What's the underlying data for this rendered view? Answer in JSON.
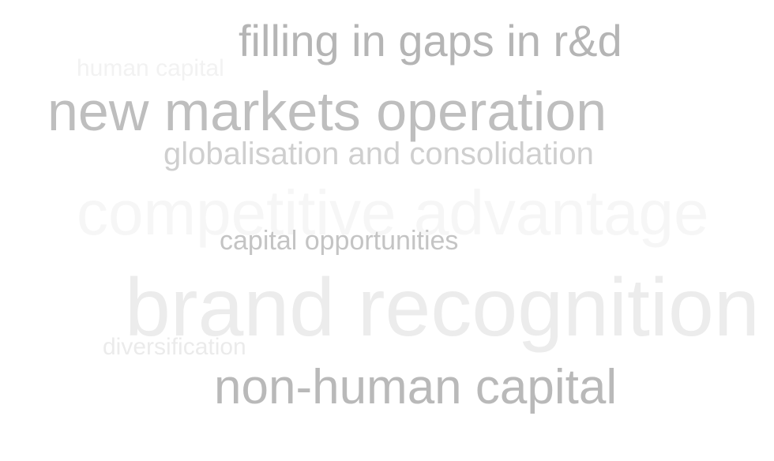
{
  "words": [
    {
      "id": "human-capital",
      "text": "human capital",
      "color": "#f2f2f2"
    },
    {
      "id": "filling-gaps",
      "text": "filling in gaps in r&d",
      "color": "#b5b5b5"
    },
    {
      "id": "new-markets",
      "text": "new markets operation",
      "color": "#bebebe"
    },
    {
      "id": "globalisation",
      "text": "globalisation and consolidation",
      "color": "#cfcfcf"
    },
    {
      "id": "competitive",
      "text": "competitive advantage",
      "color": "#f6f6f6"
    },
    {
      "id": "capital-opps",
      "text": "capital opportunities",
      "color": "#c4c4c4"
    },
    {
      "id": "brand-recognition",
      "text": "brand recognition",
      "color": "#ececec"
    },
    {
      "id": "diversification",
      "text": "diversification",
      "color": "#ebebeb"
    },
    {
      "id": "non-human",
      "text": "non-human capital",
      "color": "#b9b9b9"
    }
  ]
}
